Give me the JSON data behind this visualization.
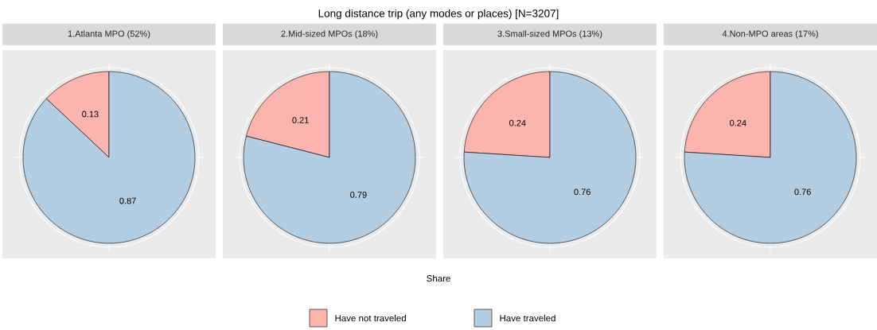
{
  "chart_data": [
    {
      "type": "pie",
      "title": "1.Atlanta MPO (52%)",
      "categories": [
        "Have not traveled",
        "Have traveled"
      ],
      "values": [
        0.13,
        0.87
      ],
      "colors": [
        "#fbb4ae",
        "#b3cde3"
      ],
      "data_labels": true,
      "grid": true,
      "legend": "bottom",
      "annotations": [
        "Long distance trip (any modes or places) [N=3207]",
        "Share"
      ]
    },
    {
      "type": "pie",
      "title": "2.Mid-sized MPOs (18%)",
      "categories": [
        null,
        null
      ],
      "values": [
        0.21,
        0.79
      ],
      "colors": [
        "#fbb4ae",
        "#b3cde3"
      ],
      "data_labels": true,
      "grid": true
    },
    {
      "type": "pie",
      "title": "3.Small-sized MPOs (13%)",
      "categories": [
        null,
        null
      ],
      "values": [
        0.24,
        0.76
      ],
      "colors": [
        "#fbb4ae",
        "#b3cde3"
      ],
      "data_labels": true,
      "grid": true
    },
    {
      "type": "pie",
      "title": "4.Non-MPO areas (17%)",
      "categories": [
        null,
        null
      ],
      "values": [
        0.24,
        0.76
      ],
      "colors": [
        "#fbb4ae",
        "#b3cde3"
      ],
      "data_labels": true,
      "grid": true
    }
  ]
}
